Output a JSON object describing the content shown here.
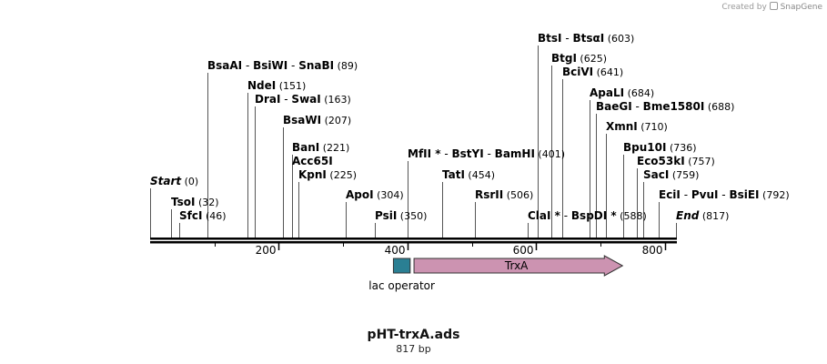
{
  "credit": {
    "prefix": "Created by",
    "brand": "SnapGene",
    "brand_icon": "snapgene-logo-icon"
  },
  "sequence": {
    "name": "pHT-trxA.ads",
    "length_label": "817 bp",
    "length": 817
  },
  "ruler": {
    "ticks": [
      "200",
      "400",
      "600",
      "800"
    ]
  },
  "features": [
    {
      "name": "lac operator",
      "type": "box",
      "start": 378,
      "end": 404,
      "color": "#2a7f93"
    },
    {
      "name": "TrxA",
      "type": "arrow",
      "start": 410,
      "end": 734,
      "color": "#cc93b1"
    }
  ],
  "sites": [
    {
      "parts": [
        {
          "name": "Start"
        }
      ],
      "position": "(0)",
      "bp": 0,
      "italic": true
    },
    {
      "parts": [
        {
          "name": "TsoI"
        }
      ],
      "position": "(32)",
      "bp": 32
    },
    {
      "parts": [
        {
          "name": "SfcI"
        }
      ],
      "position": "(46)",
      "bp": 46
    },
    {
      "parts": [
        {
          "name": "BsaAI"
        },
        {
          "name": "BsiWI"
        },
        {
          "name": "SnaBI"
        }
      ],
      "position": "(89)",
      "bp": 89
    },
    {
      "parts": [
        {
          "name": "NdeI"
        }
      ],
      "position": "(151)",
      "bp": 151
    },
    {
      "parts": [
        {
          "name": "DraI"
        },
        {
          "name": "SwaI"
        }
      ],
      "position": "(163)",
      "bp": 163
    },
    {
      "parts": [
        {
          "name": "BsaWI"
        }
      ],
      "position": "(207)",
      "bp": 207
    },
    {
      "parts": [
        {
          "name": "BanI"
        }
      ],
      "position": "(221)",
      "bp": 221
    },
    {
      "parts": [
        {
          "name": "Acc65I"
        }
      ],
      "position": "",
      "bp": 221
    },
    {
      "parts": [
        {
          "name": "KpnI"
        }
      ],
      "position": "(225)",
      "bp": 225
    },
    {
      "parts": [
        {
          "name": "ApoI"
        }
      ],
      "position": "(304)",
      "bp": 304
    },
    {
      "parts": [
        {
          "name": "PsiI"
        }
      ],
      "position": "(350)",
      "bp": 350
    },
    {
      "parts": [
        {
          "name": "MfII",
          "star": "*"
        },
        {
          "name": "BstYI"
        },
        {
          "name": "BamHI"
        }
      ],
      "position": "(401)",
      "bp": 401
    },
    {
      "parts": [
        {
          "name": "TatI"
        }
      ],
      "position": "(454)",
      "bp": 454
    },
    {
      "parts": [
        {
          "name": "RsrII"
        }
      ],
      "position": "(506)",
      "bp": 506
    },
    {
      "parts": [
        {
          "name": "ClaI",
          "star": "*"
        },
        {
          "name": "BspDI",
          "star": "*"
        }
      ],
      "position": "(588)",
      "bp": 588
    },
    {
      "parts": [
        {
          "name": "BtsI"
        },
        {
          "name": "BtsαI"
        }
      ],
      "position": "(603)",
      "bp": 603
    },
    {
      "parts": [
        {
          "name": "BtgI"
        }
      ],
      "position": "(625)",
      "bp": 625
    },
    {
      "parts": [
        {
          "name": "BciVI"
        }
      ],
      "position": "(641)",
      "bp": 641
    },
    {
      "parts": [
        {
          "name": "ApaLI"
        }
      ],
      "position": "(684)",
      "bp": 684
    },
    {
      "parts": [
        {
          "name": "BaeGI"
        },
        {
          "name": "Bme1580I"
        }
      ],
      "position": "(688)",
      "bp": 688
    },
    {
      "parts": [
        {
          "name": "XmnI"
        }
      ],
      "position": "(710)",
      "bp": 710
    },
    {
      "parts": [
        {
          "name": "Bpu10I"
        }
      ],
      "position": "(736)",
      "bp": 736
    },
    {
      "parts": [
        {
          "name": "Eco53kI"
        }
      ],
      "position": "(757)",
      "bp": 757
    },
    {
      "parts": [
        {
          "name": "SacI"
        }
      ],
      "position": "(759)",
      "bp": 759
    },
    {
      "parts": [
        {
          "name": "EciI"
        },
        {
          "name": "PvuI"
        },
        {
          "name": "BsiEI"
        }
      ],
      "position": "(792)",
      "bp": 792
    },
    {
      "parts": [
        {
          "name": "End"
        }
      ],
      "position": "(817)",
      "bp": 817,
      "italic": true
    }
  ]
}
